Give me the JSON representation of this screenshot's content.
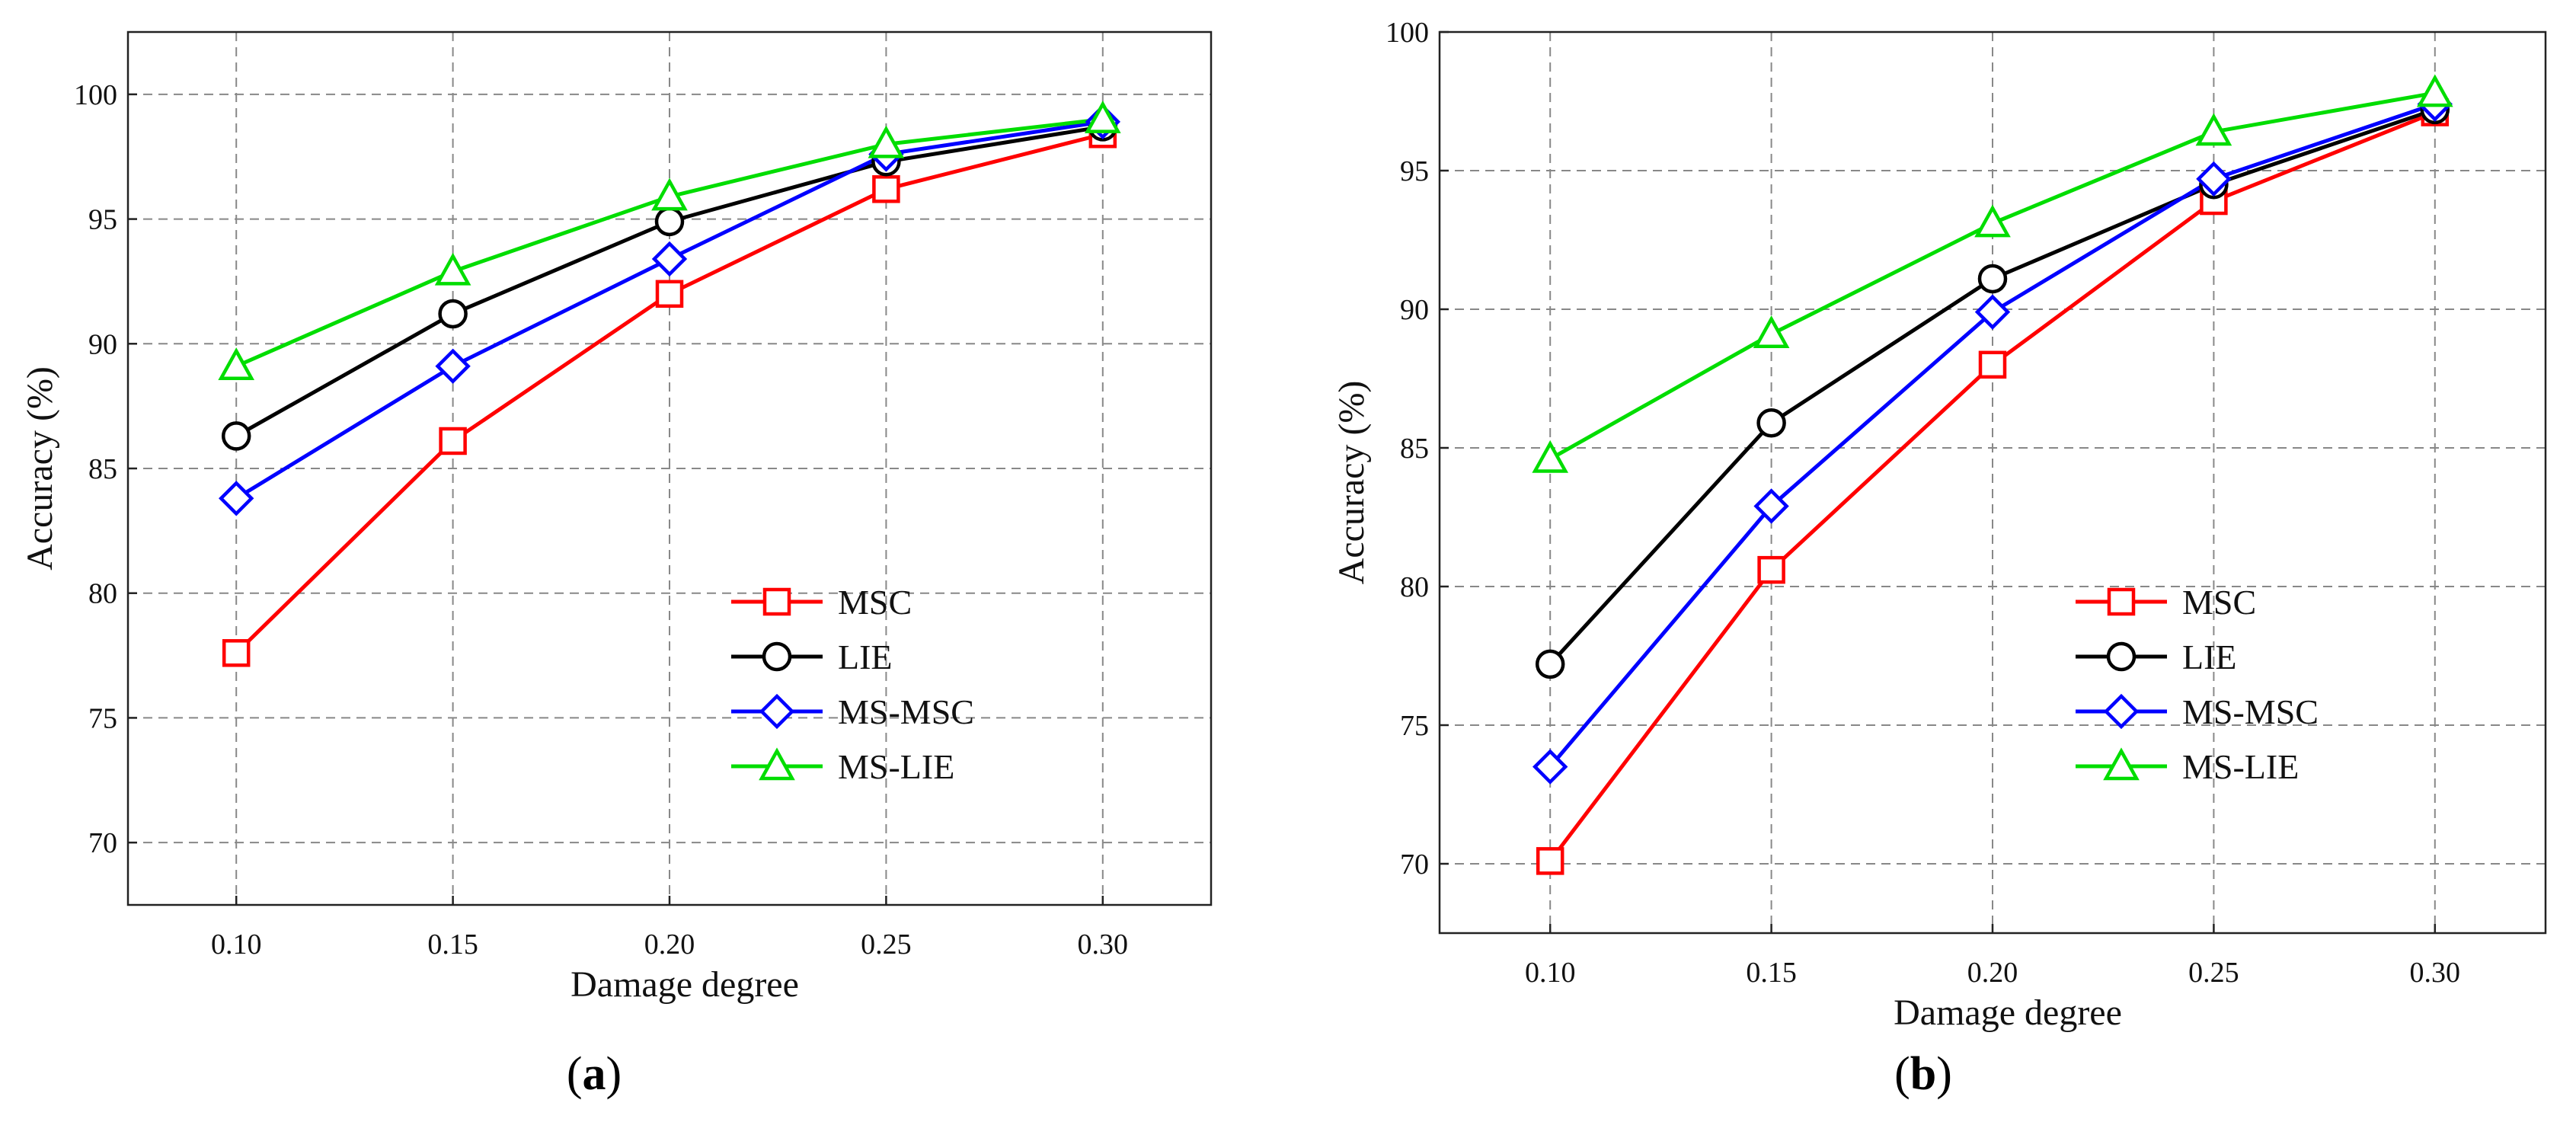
{
  "chart_data": [
    {
      "type": "line",
      "panel_label": "a",
      "xlabel": "Damage degree",
      "ylabel": "Accuracy (%)",
      "x": [
        0.1,
        0.15,
        0.2,
        0.25,
        0.3
      ],
      "x_tick_labels": [
        "0.10",
        "0.15",
        "0.20",
        "0.25",
        "0.30"
      ],
      "xlim": [
        0.075,
        0.325
      ],
      "ylim": [
        67.5,
        102.5
      ],
      "y_ticks": [
        70,
        75,
        80,
        85,
        90,
        95,
        100
      ],
      "y_tick_labels": [
        "70",
        "75",
        "80",
        "85",
        "90",
        "95",
        "100"
      ],
      "grid": true,
      "legend_position": "bottom-right",
      "series": [
        {
          "name": "MSC",
          "color": "#ff0000",
          "marker": "square",
          "values": [
            77.6,
            86.1,
            92.0,
            96.2,
            98.4
          ]
        },
        {
          "name": "LIE",
          "color": "#000000",
          "marker": "circle",
          "values": [
            86.3,
            91.2,
            94.9,
            97.3,
            98.7
          ]
        },
        {
          "name": "MS-MSC",
          "color": "#0000ff",
          "marker": "diamond",
          "values": [
            83.8,
            89.1,
            93.4,
            97.6,
            98.9
          ]
        },
        {
          "name": "MS-LIE",
          "color": "#00dd00",
          "marker": "triangle",
          "values": [
            89.1,
            92.9,
            95.9,
            98.0,
            99.0
          ]
        }
      ]
    },
    {
      "type": "line",
      "panel_label": "b",
      "xlabel": "Damage degree",
      "ylabel": "Accuracy (%)",
      "x": [
        0.1,
        0.15,
        0.2,
        0.25,
        0.3
      ],
      "x_tick_labels": [
        "0.10",
        "0.15",
        "0.20",
        "0.25",
        "0.30"
      ],
      "xlim": [
        0.075,
        0.325
      ],
      "ylim": [
        67.5,
        100
      ],
      "y_ticks": [
        70,
        75,
        80,
        85,
        90,
        95,
        100
      ],
      "y_tick_labels": [
        "70",
        "75",
        "80",
        "85",
        "90",
        "95",
        "100"
      ],
      "grid": true,
      "legend_position": "bottom-right",
      "series": [
        {
          "name": "MSC",
          "color": "#ff0000",
          "marker": "square",
          "values": [
            70.1,
            80.6,
            88.0,
            93.9,
            97.1
          ]
        },
        {
          "name": "LIE",
          "color": "#000000",
          "marker": "circle",
          "values": [
            77.2,
            85.9,
            91.1,
            94.5,
            97.2
          ]
        },
        {
          "name": "MS-MSC",
          "color": "#0000ff",
          "marker": "diamond",
          "values": [
            73.5,
            82.9,
            89.9,
            94.7,
            97.4
          ]
        },
        {
          "name": "MS-LIE",
          "color": "#00dd00",
          "marker": "triangle",
          "values": [
            84.6,
            89.1,
            93.1,
            96.4,
            97.8
          ]
        }
      ]
    }
  ]
}
